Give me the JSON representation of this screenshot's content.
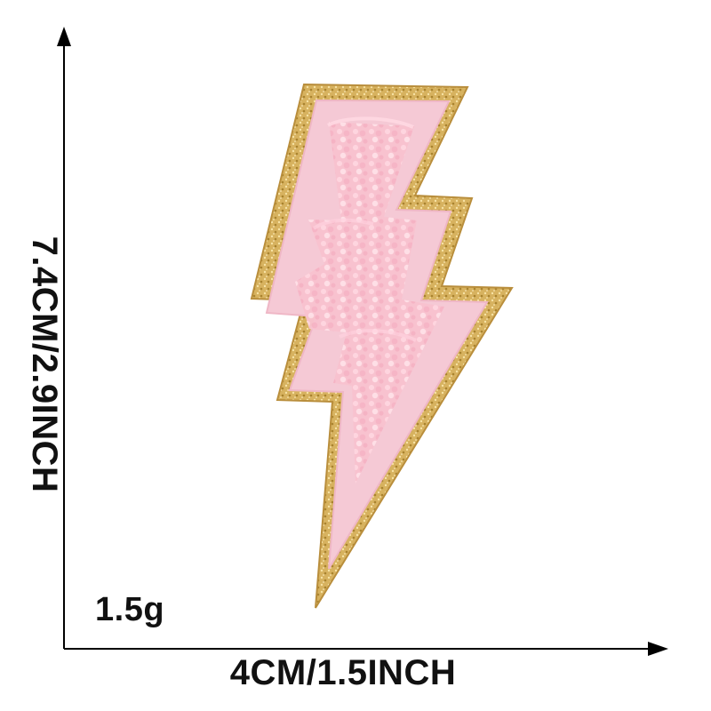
{
  "dimensions": {
    "height_label": "7.4CM/2.9INCH",
    "width_label": "4CM/1.5INCH",
    "weight_label": "1.5g"
  },
  "product": {
    "shape": "lightning-bolt",
    "fill_color": "#f4c6d2",
    "chenille_color": "#f7b9c8",
    "border_color": "#d8b25c"
  },
  "colors": {
    "axis": "#000000",
    "background": "#ffffff"
  }
}
